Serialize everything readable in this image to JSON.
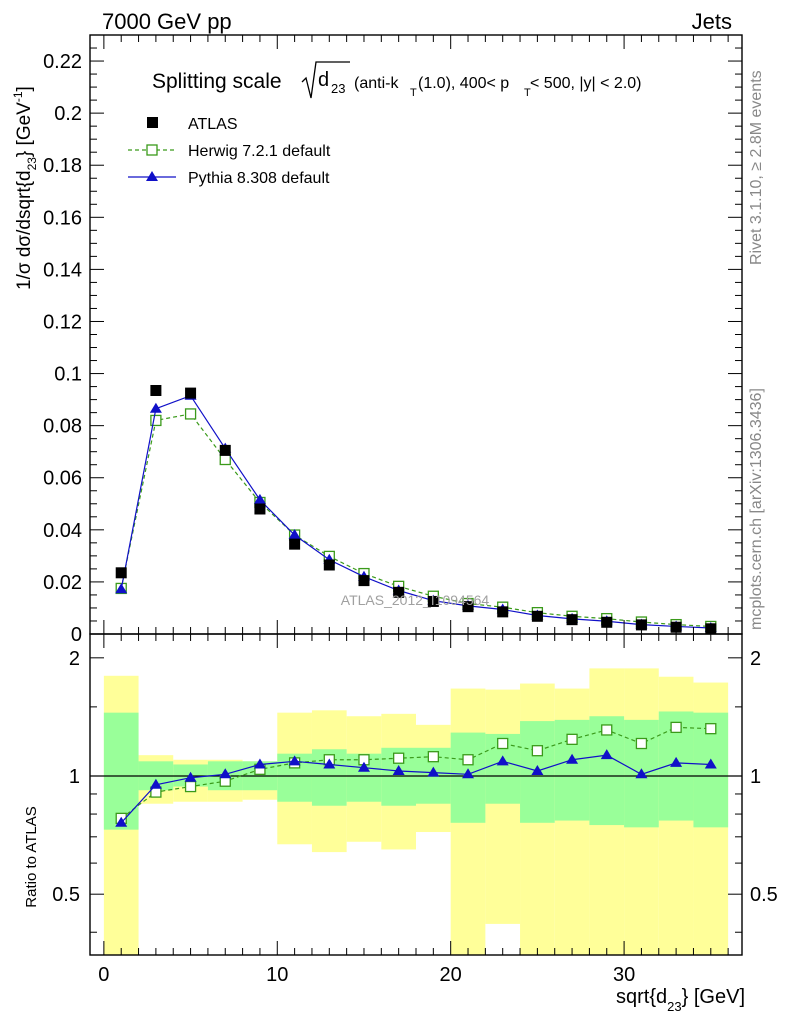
{
  "header": {
    "left": "7000 GeV pp",
    "right": "Jets"
  },
  "side_text": {
    "rivet": "Rivet 3.1.10, ≥ 2.8M events",
    "mcplots": "mcplots.cern.ch [arXiv:1306.3436]"
  },
  "watermark": "ATLAS_2012_I1094564",
  "title": {
    "lead": "Splitting scale",
    "d": "d",
    "d_sub": "23",
    "rest_1": "(anti-k",
    "kT_sub": "T",
    "rest_2": "(1.0), 400< p",
    "pT_sub": "T",
    "rest_3": " < 500, |y| < 2.0)"
  },
  "axes": {
    "y_top_label": "1/σ dσ/dsqrt{d",
    "y_top_label_sub": "23",
    "y_top_label_mid": "} [GeV",
    "y_top_label_sup": "-1",
    "y_top_label_end": "]",
    "y_bottom_label": "Ratio to ATLAS",
    "x_label": "sqrt{d",
    "x_label_sub": "23",
    "x_label_end": "} [GeV]"
  },
  "legend": {
    "atlas": "ATLAS",
    "herwig": "Herwig 7.2.1 default",
    "pythia": "Pythia 8.308 default"
  },
  "colors": {
    "data": "#000000",
    "herwig": "#3a9a1a",
    "pythia": "#1010c8",
    "band_inner": "#99ff99",
    "band_outer": "#ffff99"
  },
  "chart_data": {
    "type": "scatter",
    "x_range": [
      -0.8,
      36.8
    ],
    "bin_edges": [
      0,
      2,
      4,
      6,
      8,
      10,
      12,
      14,
      16,
      18,
      20,
      22,
      24,
      26,
      28,
      30,
      32,
      34,
      36
    ],
    "x": [
      1,
      3,
      5,
      7,
      9,
      11,
      13,
      15,
      17,
      19,
      21,
      23,
      25,
      27,
      29,
      31,
      33,
      35
    ],
    "top": {
      "ylim": [
        0,
        0.23
      ],
      "yticks": [
        0,
        0.02,
        0.04,
        0.06,
        0.08,
        0.1,
        0.12,
        0.14,
        0.16,
        0.18,
        0.2,
        0.22
      ],
      "ytick_labels": [
        "0",
        "0.02",
        "0.04",
        "0.06",
        "0.08",
        "0.1",
        "0.12",
        "0.14",
        "0.16",
        "0.18",
        "0.2",
        "0.22"
      ],
      "series": [
        {
          "name": "ATLAS",
          "style": "marker",
          "values": [
            0.0235,
            0.0935,
            0.0925,
            0.0705,
            0.048,
            0.0345,
            0.0265,
            0.0205,
            0.016,
            0.0125,
            0.0105,
            0.0085,
            0.0068,
            0.0055,
            0.0045,
            0.0035,
            0.0026,
            0.002
          ]
        },
        {
          "name": "Herwig 7.2.1 default",
          "style": "dashed",
          "values": [
            0.0175,
            0.082,
            0.0845,
            0.067,
            0.0505,
            0.038,
            0.0298,
            0.0232,
            0.0183,
            0.0145,
            0.0117,
            0.0103,
            0.0082,
            0.0068,
            0.0059,
            0.0046,
            0.0036,
            0.0029
          ]
        },
        {
          "name": "Pythia 8.308 default",
          "style": "solid",
          "values": [
            0.0172,
            0.0865,
            0.0915,
            0.0712,
            0.0515,
            0.038,
            0.0285,
            0.022,
            0.0167,
            0.0128,
            0.0108,
            0.0094,
            0.0071,
            0.0058,
            0.0049,
            0.0036,
            0.0029,
            0.0023
          ]
        }
      ]
    },
    "ratio": {
      "ylim": [
        0.35,
        2.3
      ],
      "yticks": [
        0.5,
        1,
        2
      ],
      "ytick_labels": [
        "0.5",
        "1",
        "2"
      ],
      "reference": 1,
      "band_inner": [
        [
          0.73,
          1.45
        ],
        [
          0.92,
          1.09
        ],
        [
          0.94,
          1.07
        ],
        [
          0.92,
          1.09
        ],
        [
          0.92,
          1.09
        ],
        [
          0.86,
          1.14
        ],
        [
          0.84,
          1.17
        ],
        [
          0.86,
          1.14
        ],
        [
          0.84,
          1.18
        ],
        [
          0.85,
          1.18
        ],
        [
          0.76,
          1.29
        ],
        [
          0.85,
          1.28
        ],
        [
          0.76,
          1.38
        ],
        [
          0.77,
          1.39
        ],
        [
          0.75,
          1.42
        ],
        [
          0.74,
          1.39
        ],
        [
          0.77,
          1.46
        ],
        [
          0.74,
          1.45
        ]
      ],
      "band_outer": [
        [
          0.0,
          1.8
        ],
        [
          0.85,
          1.13
        ],
        [
          0.86,
          1.1
        ],
        [
          0.86,
          1.1
        ],
        [
          0.87,
          1.09
        ],
        [
          0.67,
          1.45
        ],
        [
          0.64,
          1.47
        ],
        [
          0.68,
          1.42
        ],
        [
          0.65,
          1.44
        ],
        [
          0.72,
          1.35
        ],
        [
          0.35,
          1.67
        ],
        [
          0.42,
          1.66
        ],
        [
          0.35,
          1.72
        ],
        [
          0.35,
          1.67
        ],
        [
          0.35,
          1.88
        ],
        [
          0.35,
          1.88
        ],
        [
          0.35,
          1.79
        ],
        [
          0.35,
          1.73
        ]
      ],
      "series": [
        {
          "name": "Herwig 7.2.1 default",
          "style": "dashed",
          "values": [
            0.78,
            0.91,
            0.94,
            0.97,
            1.04,
            1.08,
            1.1,
            1.1,
            1.11,
            1.12,
            1.1,
            1.21,
            1.16,
            1.24,
            1.31,
            1.21,
            1.33,
            1.32
          ]
        },
        {
          "name": "Pythia 8.308 default",
          "style": "solid",
          "values": [
            0.76,
            0.95,
            0.99,
            1.01,
            1.07,
            1.09,
            1.07,
            1.05,
            1.03,
            1.02,
            1.01,
            1.09,
            1.03,
            1.1,
            1.13,
            1.01,
            1.08,
            1.07
          ]
        }
      ]
    },
    "xticks": [
      0,
      10,
      20,
      30
    ],
    "xtick_labels": [
      "0",
      "10",
      "20",
      "30"
    ]
  }
}
